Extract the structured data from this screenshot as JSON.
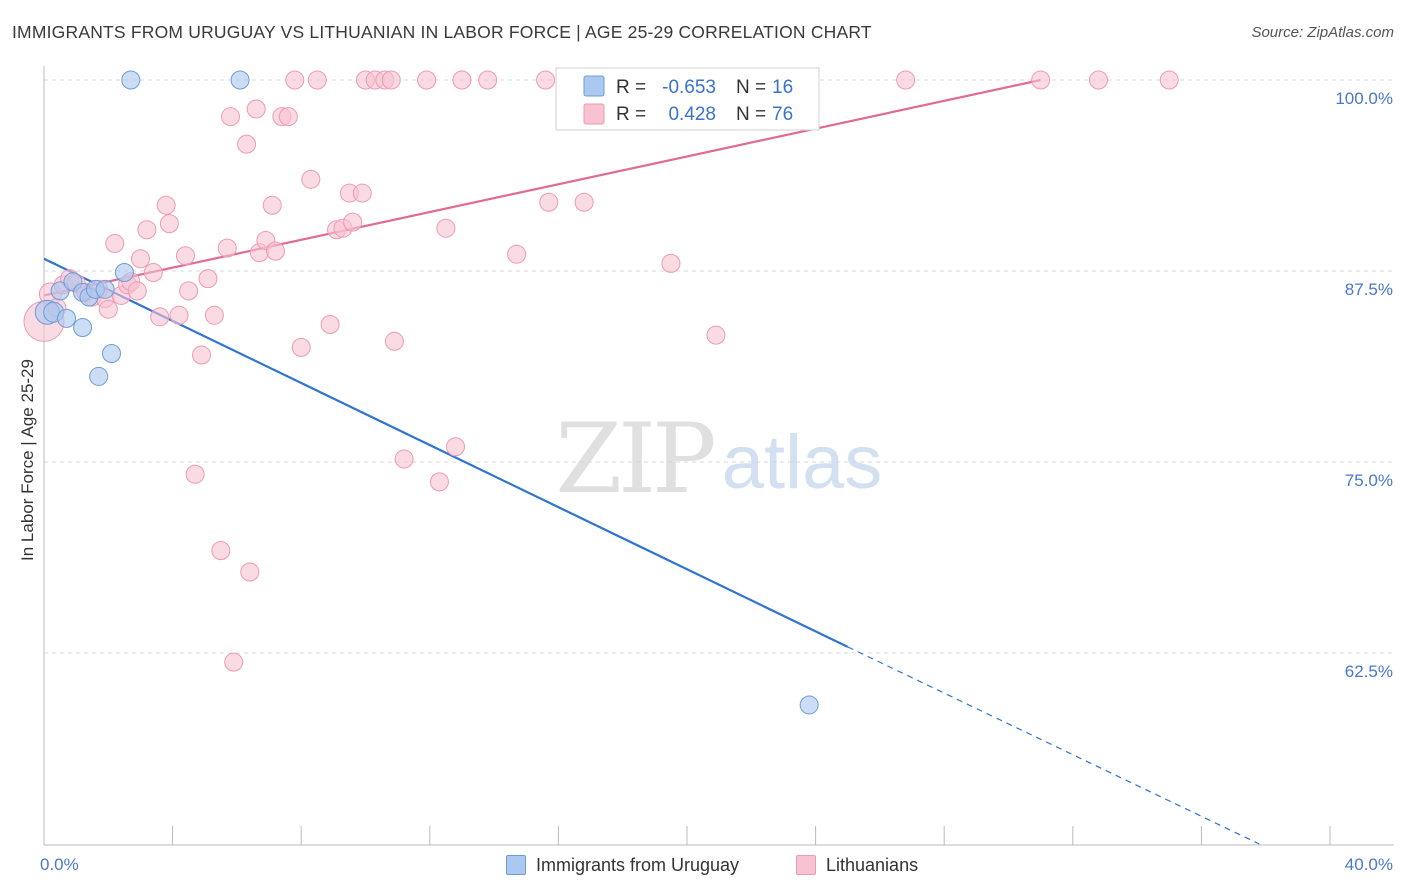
{
  "title": "IMMIGRANTS FROM URUGUAY VS LITHUANIAN IN LABOR FORCE | AGE 25-29 CORRELATION CHART",
  "source": "Source: ZipAtlas.com",
  "watermark": {
    "zip": "ZIP",
    "atlas": "atlas"
  },
  "colors": {
    "blue_fill": "#aac8f0",
    "blue_stroke": "#6f9bd8",
    "blue_line": "#2f74d0",
    "pink_fill": "#f7c3d2",
    "pink_stroke": "#ee9ab4",
    "pink_line": "#e06a94",
    "axis_label": "#4a78c8",
    "grid": "#d8d8d8"
  },
  "legend": {
    "r_label": "R =",
    "n_label": "N =",
    "rows": [
      {
        "series": "uruguay",
        "r": "-0.653",
        "n": "16"
      },
      {
        "series": "lithuanians",
        "r": "0.428",
        "n": "76"
      }
    ]
  },
  "bottom_legend": [
    {
      "series": "uruguay",
      "label": "Immigrants from Uruguay"
    },
    {
      "series": "lithuanians",
      "label": "Lithuanians"
    }
  ],
  "chart_data": {
    "type": "scatter",
    "title": "IMMIGRANTS FROM URUGUAY VS LITHUANIAN IN LABOR FORCE | AGE 25-29 CORRELATION CHART",
    "xlabel": "",
    "ylabel": "In Labor Force | Age 25-29",
    "xlim": [
      0,
      40
    ],
    "ylim": [
      50,
      100
    ],
    "x_tick_labels": [
      {
        "value": 0,
        "label": "0.0%"
      },
      {
        "value": 40,
        "label": "40.0%"
      }
    ],
    "y_ticks": [
      {
        "value": 100,
        "label": "100.0%"
      },
      {
        "value": 87.5,
        "label": "87.5%"
      },
      {
        "value": 75,
        "label": "75.0%"
      },
      {
        "value": 62.5,
        "label": "62.5%"
      }
    ],
    "x_minor_ticks": [
      0,
      4,
      8,
      12,
      16,
      20,
      24,
      28,
      32,
      36,
      40
    ],
    "grid": true,
    "series": [
      {
        "name": "Immigrants from Uruguay",
        "key": "uruguay",
        "r": -0.653,
        "n": 16,
        "points": [
          [
            0.1,
            84.8,
            12
          ],
          [
            0.3,
            84.8,
            10
          ],
          [
            0.5,
            86.2,
            9
          ],
          [
            0.7,
            84.4,
            9
          ],
          [
            0.9,
            86.8,
            9
          ],
          [
            1.2,
            86.1,
            9
          ],
          [
            1.2,
            83.8,
            9
          ],
          [
            1.4,
            85.8,
            9
          ],
          [
            1.6,
            86.3,
            9
          ],
          [
            1.7,
            80.6,
            9
          ],
          [
            1.9,
            86.3,
            9
          ],
          [
            2.1,
            82.1,
            9
          ],
          [
            2.5,
            87.4,
            9
          ],
          [
            2.7,
            100.0,
            9
          ],
          [
            6.1,
            100.0,
            9
          ],
          [
            23.8,
            59.1,
            9
          ]
        ],
        "trend": {
          "x0": 0,
          "y0": 88.3,
          "x1": 25.0,
          "y1": 62.9,
          "dash_x1": 37.8,
          "dash_y1": 50.0
        }
      },
      {
        "name": "Lithuanians",
        "key": "lithuanians",
        "r": 0.428,
        "n": 76,
        "points": [
          [
            0.0,
            84.2,
            20
          ],
          [
            0.2,
            86.0,
            11
          ],
          [
            0.4,
            85.1,
            9
          ],
          [
            0.6,
            86.6,
            9
          ],
          [
            0.8,
            87.0,
            9
          ],
          [
            1.0,
            86.7,
            9
          ],
          [
            1.3,
            86.1,
            9
          ],
          [
            1.5,
            85.8,
            9
          ],
          [
            1.7,
            86.3,
            9
          ],
          [
            1.9,
            85.7,
            9
          ],
          [
            2.0,
            85.0,
            9
          ],
          [
            2.2,
            89.3,
            9
          ],
          [
            2.4,
            85.9,
            9
          ],
          [
            2.6,
            86.6,
            9
          ],
          [
            2.7,
            86.8,
            9
          ],
          [
            2.9,
            86.2,
            9
          ],
          [
            3.0,
            88.3,
            9
          ],
          [
            3.2,
            90.2,
            9
          ],
          [
            3.4,
            87.4,
            9
          ],
          [
            3.6,
            84.5,
            9
          ],
          [
            3.8,
            91.8,
            9
          ],
          [
            3.9,
            90.6,
            9
          ],
          [
            4.2,
            84.6,
            9
          ],
          [
            4.4,
            88.5,
            9
          ],
          [
            4.5,
            86.2,
            9
          ],
          [
            4.7,
            74.2,
            9
          ],
          [
            4.9,
            82.0,
            9
          ],
          [
            5.1,
            87.0,
            9
          ],
          [
            5.3,
            84.6,
            9
          ],
          [
            5.5,
            69.2,
            9
          ],
          [
            5.7,
            89.0,
            9
          ],
          [
            5.8,
            97.6,
            9
          ],
          [
            5.9,
            61.9,
            9
          ],
          [
            6.3,
            95.8,
            9
          ],
          [
            6.4,
            67.8,
            9
          ],
          [
            6.6,
            98.1,
            9
          ],
          [
            6.7,
            88.7,
            9
          ],
          [
            6.9,
            89.5,
            9
          ],
          [
            7.1,
            91.8,
            9
          ],
          [
            7.2,
            88.8,
            9
          ],
          [
            7.4,
            97.6,
            9
          ],
          [
            7.6,
            97.6,
            9
          ],
          [
            7.8,
            100.0,
            9
          ],
          [
            8.0,
            82.5,
            9
          ],
          [
            8.3,
            93.5,
            9
          ],
          [
            8.5,
            100.0,
            9
          ],
          [
            8.9,
            84.0,
            9
          ],
          [
            9.1,
            90.2,
            9
          ],
          [
            9.3,
            90.3,
            9
          ],
          [
            9.5,
            92.6,
            9
          ],
          [
            9.6,
            90.7,
            9
          ],
          [
            9.9,
            92.6,
            9
          ],
          [
            10.0,
            100.0,
            9
          ],
          [
            10.3,
            100.0,
            9
          ],
          [
            10.6,
            100.0,
            9
          ],
          [
            10.8,
            100.0,
            9
          ],
          [
            10.9,
            82.9,
            9
          ],
          [
            11.2,
            75.2,
            9
          ],
          [
            11.9,
            100.0,
            9
          ],
          [
            12.3,
            73.7,
            9
          ],
          [
            12.5,
            90.3,
            9
          ],
          [
            12.8,
            76.0,
            9
          ],
          [
            13.0,
            100.0,
            9
          ],
          [
            13.8,
            100.0,
            9
          ],
          [
            14.7,
            88.6,
            9
          ],
          [
            15.6,
            100.0,
            9
          ],
          [
            15.7,
            92.0,
            9
          ],
          [
            16.3,
            100.0,
            9
          ],
          [
            16.8,
            92.0,
            9
          ],
          [
            19.5,
            88.0,
            9
          ],
          [
            20.9,
            83.3,
            9
          ],
          [
            22.9,
            100.0,
            9
          ],
          [
            26.8,
            100.0,
            9
          ],
          [
            31.0,
            100.0,
            9
          ],
          [
            32.8,
            100.0,
            9
          ],
          [
            35.0,
            100.0,
            9
          ]
        ],
        "trend": {
          "x0": 0,
          "y0": 85.9,
          "x1": 31.0,
          "y1": 100.0
        }
      }
    ]
  }
}
